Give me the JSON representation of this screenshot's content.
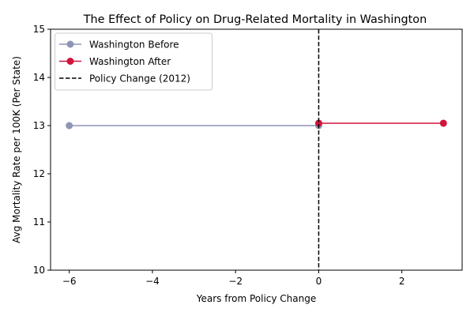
{
  "chart_data": {
    "type": "line",
    "title": "The Effect of Policy on Drug-Related Mortality in Washington",
    "xlabel": "Years from Policy Change",
    "ylabel": "Avg Mortality Rate per 100K (Per State)",
    "xlim": [
      -6.45,
      3.45
    ],
    "ylim": [
      10,
      15
    ],
    "x_ticks": [
      -6,
      -4,
      -2,
      0,
      2
    ],
    "x_tick_labels": [
      "−6",
      "−4",
      "−2",
      "0",
      "2"
    ],
    "y_ticks": [
      10,
      11,
      12,
      13,
      14,
      15
    ],
    "y_tick_labels": [
      "10",
      "11",
      "12",
      "13",
      "14",
      "15"
    ],
    "grid": false,
    "legend_position": "top-left",
    "series": [
      {
        "name": "Washington Before",
        "color": "#8e96b4",
        "x": [
          -6,
          0
        ],
        "y": [
          13.0,
          13.0
        ]
      },
      {
        "name": "Washington After",
        "color": "#d0143b",
        "x": [
          0,
          3
        ],
        "y": [
          13.05,
          13.05
        ]
      }
    ],
    "reference_lines": [
      {
        "name": "Policy Change (2012)",
        "x": 0,
        "color": "#000000",
        "style": "dashed"
      }
    ]
  }
}
